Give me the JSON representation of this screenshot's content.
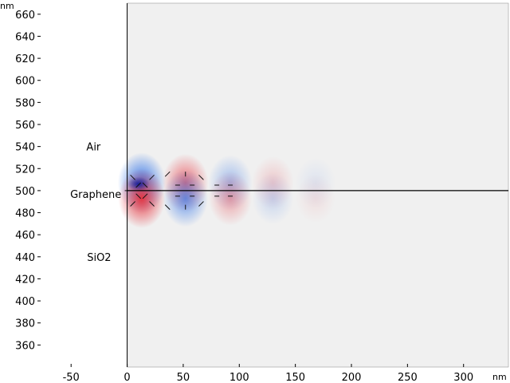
{
  "chart_data": {
    "type": "heatmap",
    "x_unit": "nm",
    "y_unit": "nm",
    "xlim": [
      -80,
      340
    ],
    "ylim": [
      340,
      670
    ],
    "x_ticks": [
      -50,
      0,
      50,
      100,
      150,
      200,
      250,
      300
    ],
    "y_ticks": [
      360,
      380,
      400,
      420,
      440,
      460,
      480,
      500,
      520,
      540,
      560,
      580,
      600,
      620,
      640,
      660
    ],
    "graphene_y": 500,
    "regions": [
      {
        "label": "Air",
        "x": -30,
        "y": 540
      },
      {
        "label": "Graphene",
        "x": -28,
        "y": 497
      },
      {
        "label": "SiO2",
        "x": -25,
        "y": 440
      }
    ],
    "field_lobes": [
      {
        "x": 13,
        "y": 510,
        "sign": -1,
        "amp": 1.0
      },
      {
        "x": 13,
        "y": 490,
        "sign": 1,
        "amp": 1.0
      },
      {
        "x": 52,
        "y": 510,
        "sign": 1,
        "amp": 0.72
      },
      {
        "x": 52,
        "y": 490,
        "sign": -1,
        "amp": 0.72
      },
      {
        "x": 92,
        "y": 510,
        "sign": -1,
        "amp": 0.42
      },
      {
        "x": 92,
        "y": 490,
        "sign": 1,
        "amp": 0.42
      },
      {
        "x": 130,
        "y": 510,
        "sign": 1,
        "amp": 0.22
      },
      {
        "x": 130,
        "y": 490,
        "sign": -1,
        "amp": 0.22
      },
      {
        "x": 168,
        "y": 510,
        "sign": -1,
        "amp": 0.1
      },
      {
        "x": 168,
        "y": 490,
        "sign": 1,
        "amp": 0.1
      }
    ],
    "colors": {
      "background": "#f0f0f0",
      "positive": "#e8303a",
      "negative": "#2a6fe8",
      "graphene_line": "#000000",
      "axis": "#000000"
    }
  }
}
